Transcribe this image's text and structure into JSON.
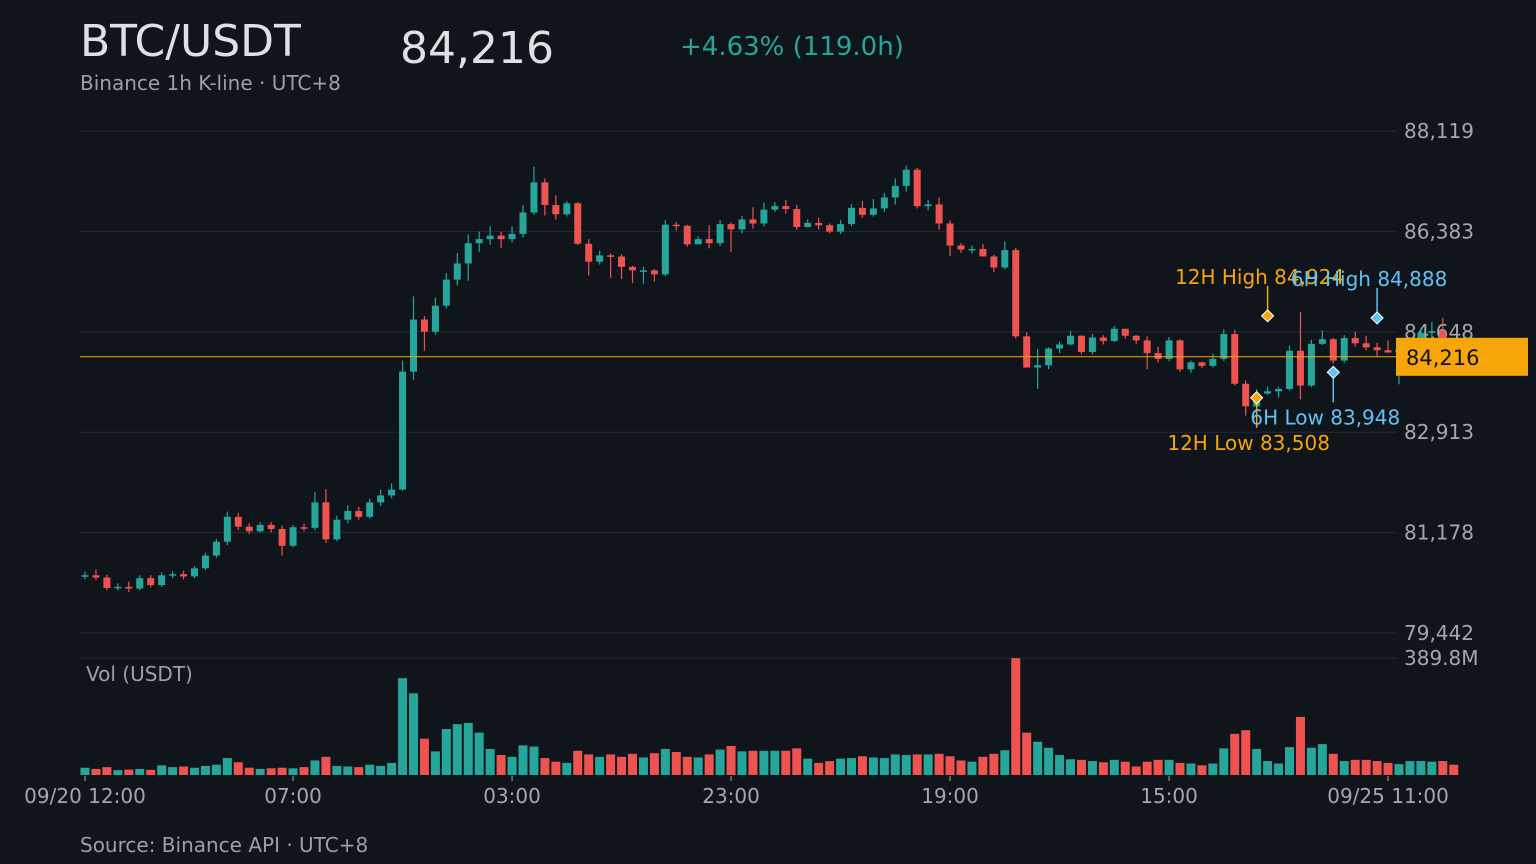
{
  "header": {
    "symbol": "BTC/USDT",
    "price": "84,216",
    "change": "+4.63% (119.0h)",
    "subtitle": "Binance 1h K-line · UTC+8"
  },
  "footer": {
    "source": "Source: Binance API · UTC+8"
  },
  "colors": {
    "background": "#10151c",
    "up": "#26a69a",
    "down": "#ef5350",
    "grid": "#232a33",
    "axis_text": "#a3a8ae",
    "price_line": "#f6a609",
    "annotation_12h": "#f6a609",
    "annotation_6h": "#64c1f3"
  },
  "chart_data": {
    "type": "candlestick",
    "interval": "1h",
    "y_ticks": [
      "88,119",
      "86,383",
      "84,648",
      "82,913",
      "81,178",
      "79,442"
    ],
    "ylim": [
      79442,
      88119
    ],
    "x_ticks": [
      {
        "index": 0,
        "label": "09/20 12:00"
      },
      {
        "index": 19,
        "label": "07:00"
      },
      {
        "index": 39,
        "label": "03:00"
      },
      {
        "index": 59,
        "label": "23:00"
      },
      {
        "index": 79,
        "label": "19:00"
      },
      {
        "index": 99,
        "label": "15:00"
      },
      {
        "index": 119,
        "label": "09/25 11:00"
      }
    ],
    "current_price": {
      "value": 84216,
      "label": "84,216"
    },
    "volume_label": "Vol (USDT)",
    "volume_max_label": "389.8M",
    "volume_max": 389.8,
    "annotations": [
      {
        "text": "12H High 84,924",
        "kind": "high",
        "group": "12h",
        "index": 108,
        "value": 84924
      },
      {
        "text": "12H Low 83,508",
        "kind": "low",
        "group": "12h",
        "index": 107,
        "value": 83508
      },
      {
        "text": "6H High 84,888",
        "kind": "high",
        "group": "6h",
        "index": 118,
        "value": 84888
      },
      {
        "text": "6H Low 83,948",
        "kind": "low",
        "group": "6h",
        "index": 114,
        "value": 83948
      }
    ],
    "candles": [
      [
        80420,
        80440,
        80370,
        80500,
        24
      ],
      [
        80440,
        80400,
        80360,
        80540,
        20
      ],
      [
        80400,
        80220,
        80180,
        80450,
        26
      ],
      [
        80220,
        80240,
        80180,
        80300,
        16
      ],
      [
        80240,
        80210,
        80150,
        80330,
        18
      ],
      [
        80210,
        80390,
        80180,
        80440,
        20
      ],
      [
        80390,
        80270,
        80230,
        80440,
        17
      ],
      [
        80270,
        80440,
        80240,
        80490,
        32
      ],
      [
        80440,
        80460,
        80390,
        80510,
        26
      ],
      [
        80460,
        80420,
        80370,
        80520,
        28
      ],
      [
        80420,
        80560,
        80390,
        80600,
        24
      ],
      [
        80560,
        80780,
        80530,
        80830,
        30
      ],
      [
        80780,
        81020,
        80740,
        81070,
        34
      ],
      [
        81020,
        81450,
        80960,
        81540,
        56
      ],
      [
        81450,
        81280,
        81220,
        81520,
        42
      ],
      [
        81280,
        81200,
        81150,
        81340,
        24
      ],
      [
        81200,
        81310,
        81180,
        81360,
        20
      ],
      [
        81310,
        81240,
        81180,
        81360,
        22
      ],
      [
        81240,
        80950,
        80780,
        81300,
        24
      ],
      [
        80950,
        81270,
        80920,
        81310,
        22
      ],
      [
        81270,
        81260,
        81200,
        81330,
        26
      ],
      [
        81260,
        81700,
        81220,
        81880,
        48
      ],
      [
        81700,
        81060,
        81000,
        81930,
        60
      ],
      [
        81060,
        81400,
        81030,
        81470,
        30
      ],
      [
        81400,
        81550,
        81340,
        81650,
        28
      ],
      [
        81550,
        81450,
        81400,
        81620,
        26
      ],
      [
        81450,
        81700,
        81420,
        81760,
        34
      ],
      [
        81700,
        81820,
        81640,
        81920,
        30
      ],
      [
        81820,
        81920,
        81770,
        82030,
        40
      ],
      [
        81920,
        83960,
        81900,
        84150,
        320
      ],
      [
        83960,
        84860,
        83820,
        85260,
        270
      ],
      [
        84860,
        84650,
        84320,
        84920,
        120
      ],
      [
        84650,
        85100,
        84600,
        85240,
        78
      ],
      [
        85100,
        85550,
        85050,
        85660,
        152
      ],
      [
        85550,
        85830,
        85450,
        86010,
        168
      ],
      [
        85830,
        86180,
        85530,
        86330,
        172
      ],
      [
        86180,
        86250,
        86030,
        86380,
        140
      ],
      [
        86250,
        86310,
        86150,
        86470,
        86
      ],
      [
        86310,
        86250,
        86100,
        86380,
        66
      ],
      [
        86250,
        86340,
        86190,
        86470,
        60
      ],
      [
        86340,
        86710,
        86280,
        86840,
        98
      ],
      [
        86710,
        87230,
        86670,
        87500,
        94
      ],
      [
        87230,
        86840,
        86660,
        87300,
        56
      ],
      [
        86840,
        86680,
        86590,
        87010,
        44
      ],
      [
        86680,
        86870,
        86640,
        86910,
        40
      ],
      [
        86870,
        86170,
        86150,
        86890,
        80
      ],
      [
        86170,
        85860,
        85620,
        86250,
        68
      ],
      [
        85860,
        85970,
        85810,
        86050,
        60
      ],
      [
        85970,
        85950,
        85580,
        86000,
        68
      ],
      [
        85950,
        85770,
        85560,
        85990,
        60
      ],
      [
        85770,
        85710,
        85490,
        85790,
        70
      ],
      [
        85710,
        85710,
        85480,
        85770,
        58
      ],
      [
        85710,
        85640,
        85520,
        85730,
        72
      ],
      [
        85640,
        86500,
        85610,
        86580,
        86
      ],
      [
        86500,
        86480,
        86400,
        86550,
        76
      ],
      [
        86480,
        86160,
        86120,
        86500,
        60
      ],
      [
        86160,
        86250,
        86170,
        86300,
        58
      ],
      [
        86250,
        86180,
        86090,
        86490,
        68
      ],
      [
        86180,
        86510,
        86130,
        86580,
        84
      ],
      [
        86510,
        86420,
        86030,
        86540,
        96
      ],
      [
        86420,
        86590,
        86350,
        86650,
        78
      ],
      [
        86590,
        86520,
        86430,
        86800,
        80
      ],
      [
        86520,
        86760,
        86470,
        86880,
        80
      ],
      [
        86760,
        86820,
        86720,
        86890,
        80
      ],
      [
        86820,
        86770,
        86690,
        86930,
        80
      ],
      [
        86770,
        86460,
        86410,
        86840,
        88
      ],
      [
        86460,
        86530,
        86450,
        86590,
        54
      ],
      [
        86530,
        86490,
        86420,
        86620,
        40
      ],
      [
        86490,
        86380,
        86350,
        86520,
        46
      ],
      [
        86380,
        86510,
        86340,
        86580,
        54
      ],
      [
        86510,
        86790,
        86470,
        86860,
        56
      ],
      [
        86790,
        86670,
        86620,
        86910,
        62
      ],
      [
        86670,
        86780,
        86640,
        86940,
        58
      ],
      [
        86780,
        86970,
        86720,
        87050,
        56
      ],
      [
        86970,
        87170,
        86850,
        87300,
        68
      ],
      [
        87170,
        87450,
        87070,
        87520,
        66
      ],
      [
        87450,
        86820,
        86780,
        87480,
        68
      ],
      [
        86820,
        86850,
        86750,
        86930,
        68
      ],
      [
        86850,
        86520,
        86410,
        86970,
        70
      ],
      [
        86520,
        86140,
        85960,
        86570,
        62
      ],
      [
        86140,
        86070,
        86010,
        86180,
        48
      ],
      [
        86070,
        86080,
        86000,
        86140,
        44
      ],
      [
        86080,
        85950,
        85960,
        86170,
        60
      ],
      [
        85950,
        85760,
        85680,
        85980,
        70
      ],
      [
        85760,
        86060,
        85730,
        86210,
        82
      ],
      [
        86060,
        84570,
        84530,
        86100,
        386
      ],
      [
        84570,
        84030,
        84040,
        84640,
        140
      ],
      [
        84030,
        84070,
        83660,
        84350,
        110
      ],
      [
        84070,
        84360,
        84000,
        84380,
        90
      ],
      [
        84360,
        84430,
        84280,
        84480,
        66
      ],
      [
        84430,
        84580,
        84410,
        84660,
        52
      ],
      [
        84580,
        84300,
        84260,
        84590,
        50
      ],
      [
        84300,
        84550,
        84260,
        84610,
        46
      ],
      [
        84550,
        84490,
        84430,
        84590,
        42
      ],
      [
        84490,
        84700,
        84470,
        84750,
        50
      ],
      [
        84700,
        84580,
        84530,
        84690,
        44
      ],
      [
        84580,
        84500,
        84440,
        84590,
        28
      ],
      [
        84500,
        84280,
        84000,
        84570,
        44
      ],
      [
        84280,
        84180,
        84120,
        84390,
        50
      ],
      [
        84180,
        84500,
        84140,
        84560,
        50
      ],
      [
        84500,
        84000,
        83960,
        84520,
        40
      ],
      [
        84000,
        84120,
        83940,
        84150,
        38
      ],
      [
        84120,
        84060,
        84020,
        84130,
        32
      ],
      [
        84060,
        84180,
        84030,
        84270,
        38
      ],
      [
        84180,
        84610,
        84140,
        84690,
        88
      ],
      [
        84610,
        83750,
        83720,
        84680,
        136
      ],
      [
        83750,
        83360,
        83200,
        83810,
        148
      ],
      [
        83360,
        83580,
        83350,
        83660,
        86
      ],
      [
        83580,
        83620,
        83560,
        83700,
        46
      ],
      [
        83620,
        83660,
        83510,
        83700,
        38
      ],
      [
        83660,
        84320,
        83630,
        84410,
        92
      ],
      [
        84320,
        83720,
        83480,
        84990,
        192
      ],
      [
        83720,
        84440,
        83690,
        84510,
        90
      ],
      [
        84440,
        84520,
        84420,
        84670,
        102
      ],
      [
        84520,
        84150,
        84100,
        84540,
        70
      ],
      [
        84150,
        84540,
        84110,
        84590,
        46
      ],
      [
        84540,
        84450,
        84390,
        84650,
        50
      ],
      [
        84450,
        84380,
        84330,
        84580,
        50
      ],
      [
        84380,
        84330,
        84230,
        84460,
        46
      ],
      [
        84330,
        84290,
        84290,
        84500,
        40
      ],
      [
        84290,
        84350,
        83740,
        84480,
        36
      ],
      [
        84350,
        84460,
        84320,
        84520,
        46
      ],
      [
        84460,
        84630,
        84410,
        84720,
        46
      ],
      [
        84630,
        84660,
        84540,
        84820,
        44
      ],
      [
        84660,
        84260,
        84210,
        84890,
        46
      ],
      [
        84260,
        84216,
        84180,
        84330,
        34
      ]
    ]
  }
}
